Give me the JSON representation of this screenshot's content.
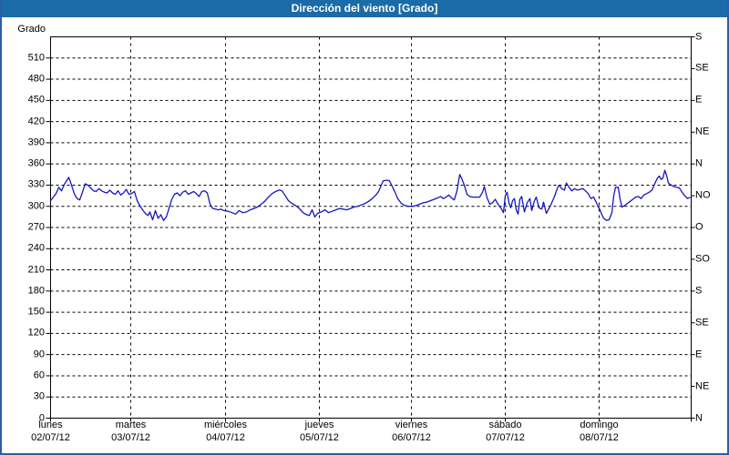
{
  "window": {
    "title": "Dirección del viento [Grado]",
    "title_bg": "#1B6BA8",
    "title_color": "#FFFFFF",
    "frame_border": "#2E5CA8",
    "background": "#FFFFFF"
  },
  "chart_data": {
    "type": "line",
    "title": "Dirección del viento [Grado]",
    "ylabel": "Grado",
    "ylim": [
      0,
      540
    ],
    "grid": "horizontal dotted every 30 deg, vertical dashed at each midnight",
    "legend_position": "none",
    "y_left_ticks": [
      0,
      30,
      60,
      90,
      120,
      150,
      180,
      210,
      240,
      270,
      300,
      330,
      360,
      390,
      420,
      450,
      480,
      510
    ],
    "y_right_ticks": [
      {
        "deg": 0,
        "label": "N"
      },
      {
        "deg": 45,
        "label": "NE"
      },
      {
        "deg": 90,
        "label": "E"
      },
      {
        "deg": 135,
        "label": "SE"
      },
      {
        "deg": 180,
        "label": "S"
      },
      {
        "deg": 225,
        "label": "SO"
      },
      {
        "deg": 270,
        "label": "O"
      },
      {
        "deg": 315,
        "label": "NO"
      },
      {
        "deg": 360,
        "label": "N"
      },
      {
        "deg": 405,
        "label": "NE"
      },
      {
        "deg": 450,
        "label": "E"
      },
      {
        "deg": 495,
        "label": "SE"
      },
      {
        "deg": 540,
        "label": "S"
      }
    ],
    "x_ticks": [
      {
        "frac": 0.0,
        "day": "lunes",
        "date": "02/07/12"
      },
      {
        "frac": 0.1252,
        "day": "martes",
        "date": "03/07/12"
      },
      {
        "frac": 0.2731,
        "day": "miércoles",
        "date": "04/07/12"
      },
      {
        "frac": 0.4196,
        "day": "jueves",
        "date": "05/07/12"
      },
      {
        "frac": 0.5633,
        "day": "viernes",
        "date": "06/07/12"
      },
      {
        "frac": 0.7098,
        "day": "sábado",
        "date": "07/07/12"
      },
      {
        "frac": 0.8563,
        "day": "domingo",
        "date": "08/07/12"
      }
    ],
    "series": [
      {
        "name": "Dirección del viento (Grado)",
        "color": "#1616BE",
        "points": [
          [
            0.0,
            308
          ],
          [
            0.0043,
            313
          ],
          [
            0.0085,
            318
          ],
          [
            0.0128,
            327
          ],
          [
            0.0171,
            322
          ],
          [
            0.0213,
            331
          ],
          [
            0.0256,
            337
          ],
          [
            0.0285,
            341
          ],
          [
            0.0327,
            330
          ],
          [
            0.037,
            318
          ],
          [
            0.0413,
            311
          ],
          [
            0.0455,
            309
          ],
          [
            0.0498,
            320
          ],
          [
            0.0541,
            332
          ],
          [
            0.0583,
            330
          ],
          [
            0.0626,
            326
          ],
          [
            0.0669,
            322
          ],
          [
            0.0711,
            321
          ],
          [
            0.0754,
            325
          ],
          [
            0.0797,
            322
          ],
          [
            0.0839,
            320
          ],
          [
            0.0882,
            319
          ],
          [
            0.0925,
            323
          ],
          [
            0.0967,
            319
          ],
          [
            0.101,
            317
          ],
          [
            0.1053,
            322
          ],
          [
            0.1095,
            316
          ],
          [
            0.1138,
            319
          ],
          [
            0.1181,
            324
          ],
          [
            0.1223,
            317
          ],
          [
            0.1266,
            318
          ],
          [
            0.1309,
            321
          ],
          [
            0.1351,
            308
          ],
          [
            0.1394,
            301
          ],
          [
            0.1437,
            295
          ],
          [
            0.1479,
            290
          ],
          [
            0.1522,
            287
          ],
          [
            0.155,
            292
          ],
          [
            0.1593,
            281
          ],
          [
            0.1636,
            294
          ],
          [
            0.1678,
            283
          ],
          [
            0.1721,
            288
          ],
          [
            0.1764,
            280
          ],
          [
            0.1806,
            285
          ],
          [
            0.1849,
            297
          ],
          [
            0.1892,
            310
          ],
          [
            0.1934,
            317
          ],
          [
            0.1977,
            319
          ],
          [
            0.202,
            315
          ],
          [
            0.2063,
            320
          ],
          [
            0.2105,
            322
          ],
          [
            0.2148,
            317
          ],
          [
            0.2191,
            319
          ],
          [
            0.2233,
            321
          ],
          [
            0.2276,
            318
          ],
          [
            0.2319,
            314
          ],
          [
            0.2361,
            321
          ],
          [
            0.2404,
            322
          ],
          [
            0.2447,
            319
          ],
          [
            0.2489,
            303
          ],
          [
            0.2532,
            297
          ],
          [
            0.2575,
            296
          ],
          [
            0.2617,
            295
          ],
          [
            0.266,
            296
          ],
          [
            0.2703,
            294
          ],
          [
            0.2774,
            293
          ],
          [
            0.2831,
            291
          ],
          [
            0.2888,
            289
          ],
          [
            0.2945,
            294
          ],
          [
            0.3002,
            291
          ],
          [
            0.3058,
            292
          ],
          [
            0.3115,
            295
          ],
          [
            0.3172,
            297
          ],
          [
            0.3229,
            299
          ],
          [
            0.3286,
            303
          ],
          [
            0.3343,
            307
          ],
          [
            0.34,
            313
          ],
          [
            0.3457,
            318
          ],
          [
            0.3514,
            321
          ],
          [
            0.357,
            323
          ],
          [
            0.3613,
            322
          ],
          [
            0.3656,
            316
          ],
          [
            0.3713,
            308
          ],
          [
            0.377,
            304
          ],
          [
            0.3826,
            301
          ],
          [
            0.3883,
            297
          ],
          [
            0.394,
            291
          ],
          [
            0.3997,
            288
          ],
          [
            0.404,
            287
          ],
          [
            0.4082,
            295
          ],
          [
            0.4125,
            285
          ],
          [
            0.4168,
            290
          ],
          [
            0.4225,
            292
          ],
          [
            0.4282,
            295
          ],
          [
            0.4339,
            291
          ],
          [
            0.4395,
            293
          ],
          [
            0.4452,
            295
          ],
          [
            0.4509,
            297
          ],
          [
            0.4566,
            296
          ],
          [
            0.4623,
            295
          ],
          [
            0.468,
            297
          ],
          [
            0.4737,
            299
          ],
          [
            0.4794,
            300
          ],
          [
            0.4851,
            302
          ],
          [
            0.4908,
            304
          ],
          [
            0.4964,
            307
          ],
          [
            0.5021,
            311
          ],
          [
            0.5078,
            316
          ],
          [
            0.5121,
            321
          ],
          [
            0.5164,
            330
          ],
          [
            0.5192,
            336
          ],
          [
            0.5249,
            337
          ],
          [
            0.5292,
            336
          ],
          [
            0.5334,
            328
          ],
          [
            0.5377,
            320
          ],
          [
            0.542,
            311
          ],
          [
            0.5477,
            304
          ],
          [
            0.5534,
            301
          ],
          [
            0.559,
            300
          ],
          [
            0.5647,
            300
          ],
          [
            0.5704,
            301
          ],
          [
            0.5761,
            303
          ],
          [
            0.5818,
            305
          ],
          [
            0.5875,
            306
          ],
          [
            0.5932,
            308
          ],
          [
            0.5989,
            310
          ],
          [
            0.6045,
            312
          ],
          [
            0.6088,
            314
          ],
          [
            0.6131,
            311
          ],
          [
            0.6174,
            313
          ],
          [
            0.6216,
            316
          ],
          [
            0.6259,
            312
          ],
          [
            0.6302,
            309
          ],
          [
            0.6344,
            322
          ],
          [
            0.6387,
            345
          ],
          [
            0.6415,
            340
          ],
          [
            0.6458,
            330
          ],
          [
            0.6501,
            317
          ],
          [
            0.6543,
            314
          ],
          [
            0.6586,
            313
          ],
          [
            0.6643,
            313
          ],
          [
            0.67,
            313
          ],
          [
            0.6743,
            320
          ],
          [
            0.6771,
            328
          ],
          [
            0.6814,
            312
          ],
          [
            0.6857,
            303
          ],
          [
            0.6899,
            305
          ],
          [
            0.6942,
            310
          ],
          [
            0.6985,
            303
          ],
          [
            0.7027,
            298
          ],
          [
            0.707,
            291
          ],
          [
            0.7098,
            315
          ],
          [
            0.7127,
            320
          ],
          [
            0.7155,
            305
          ],
          [
            0.7184,
            298
          ],
          [
            0.7212,
            308
          ],
          [
            0.724,
            311
          ],
          [
            0.7269,
            295
          ],
          [
            0.7297,
            289
          ],
          [
            0.7326,
            310
          ],
          [
            0.7354,
            314
          ],
          [
            0.7397,
            292
          ],
          [
            0.744,
            305
          ],
          [
            0.7482,
            311
          ],
          [
            0.7511,
            294
          ],
          [
            0.7553,
            308
          ],
          [
            0.7582,
            313
          ],
          [
            0.7624,
            298
          ],
          [
            0.7667,
            296
          ],
          [
            0.7696,
            306
          ],
          [
            0.7738,
            290
          ],
          [
            0.7781,
            297
          ],
          [
            0.7824,
            305
          ],
          [
            0.7866,
            314
          ],
          [
            0.7909,
            325
          ],
          [
            0.7937,
            330
          ],
          [
            0.798,
            325
          ],
          [
            0.8023,
            323
          ],
          [
            0.8051,
            333
          ],
          [
            0.8094,
            327
          ],
          [
            0.8137,
            322
          ],
          [
            0.8179,
            325
          ],
          [
            0.8222,
            323
          ],
          [
            0.8265,
            324
          ],
          [
            0.8307,
            325
          ],
          [
            0.835,
            322
          ],
          [
            0.8393,
            318
          ],
          [
            0.8435,
            311
          ],
          [
            0.8478,
            313
          ],
          [
            0.8521,
            305
          ],
          [
            0.8549,
            299
          ],
          [
            0.8577,
            295
          ],
          [
            0.8606,
            288
          ],
          [
            0.8634,
            283
          ],
          [
            0.8677,
            280
          ],
          [
            0.8719,
            281
          ],
          [
            0.8762,
            291
          ],
          [
            0.8791,
            315
          ],
          [
            0.8819,
            327
          ],
          [
            0.8862,
            327
          ],
          [
            0.889,
            310
          ],
          [
            0.8919,
            299
          ],
          [
            0.8961,
            301
          ],
          [
            0.9004,
            304
          ],
          [
            0.9047,
            307
          ],
          [
            0.9089,
            310
          ],
          [
            0.9132,
            313
          ],
          [
            0.9175,
            314
          ],
          [
            0.9217,
            311
          ],
          [
            0.926,
            316
          ],
          [
            0.9303,
            318
          ],
          [
            0.9345,
            320
          ],
          [
            0.9388,
            323
          ],
          [
            0.9431,
            332
          ],
          [
            0.9473,
            340
          ],
          [
            0.9502,
            343
          ],
          [
            0.953,
            338
          ],
          [
            0.9559,
            340
          ],
          [
            0.9587,
            351
          ],
          [
            0.9616,
            344
          ],
          [
            0.9644,
            333
          ],
          [
            0.9687,
            330
          ],
          [
            0.973,
            328
          ],
          [
            0.9772,
            327
          ],
          [
            0.9815,
            326
          ],
          [
            0.9858,
            320
          ],
          [
            0.99,
            315
          ],
          [
            0.9943,
            311
          ],
          [
            0.9986,
            313
          ]
        ]
      }
    ]
  }
}
